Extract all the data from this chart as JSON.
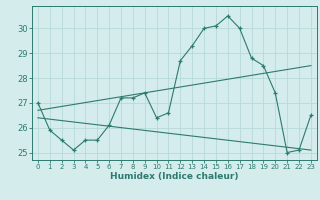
{
  "xlabel": "Humidex (Indice chaleur)",
  "ylabel": "",
  "background_color": "#d4ecec",
  "grid_color": "#b8d8d8",
  "line_color": "#2d7a6e",
  "xlim": [
    -0.5,
    23.5
  ],
  "ylim": [
    24.7,
    30.9
  ],
  "yticks": [
    25,
    26,
    27,
    28,
    29,
    30
  ],
  "xticks": [
    0,
    1,
    2,
    3,
    4,
    5,
    6,
    7,
    8,
    9,
    10,
    11,
    12,
    13,
    14,
    15,
    16,
    17,
    18,
    19,
    20,
    21,
    22,
    23
  ],
  "main_x": [
    0,
    1,
    2,
    3,
    4,
    5,
    6,
    7,
    8,
    9,
    10,
    11,
    12,
    13,
    14,
    15,
    16,
    17,
    18,
    19,
    20,
    21,
    22,
    23
  ],
  "main_y": [
    27.0,
    25.9,
    25.5,
    25.1,
    25.5,
    25.5,
    26.1,
    27.2,
    27.2,
    27.4,
    26.4,
    26.6,
    28.7,
    29.3,
    30.0,
    30.1,
    30.5,
    30.0,
    28.8,
    28.5,
    27.4,
    25.0,
    25.1,
    26.5
  ],
  "line1_x": [
    0,
    23
  ],
  "line1_y": [
    26.7,
    28.5
  ],
  "line2_x": [
    0,
    23
  ],
  "line2_y": [
    26.4,
    25.1
  ],
  "xlabel_fontsize": 6.5,
  "xlabel_fontweight": "bold",
  "xtick_fontsize": 5.0,
  "ytick_fontsize": 6.0
}
